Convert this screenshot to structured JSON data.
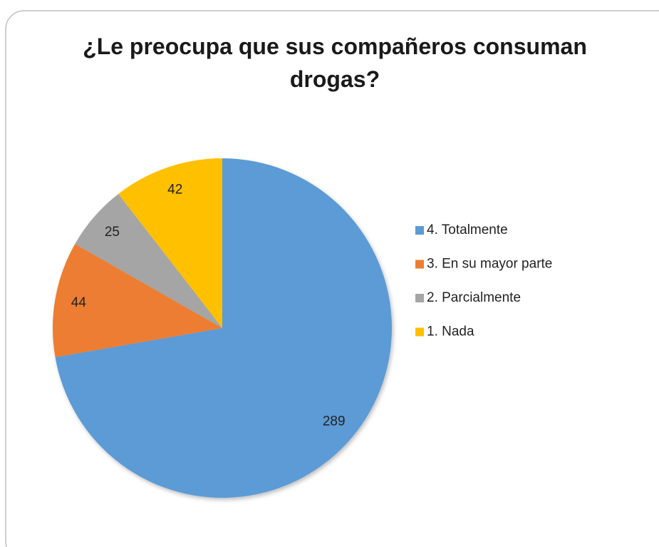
{
  "chart_data": {
    "type": "pie",
    "title": "¿Le preocupa que sus compañeros consuman drogas?",
    "categories": [
      "4. Totalmente",
      "3. En su mayor parte",
      "2. Parcialmente",
      "1. Nada"
    ],
    "values": [
      289,
      44,
      25,
      42
    ],
    "colors": [
      "#5b9bd5",
      "#ed7d31",
      "#a5a5a5",
      "#ffc000"
    ],
    "legend": "right"
  }
}
